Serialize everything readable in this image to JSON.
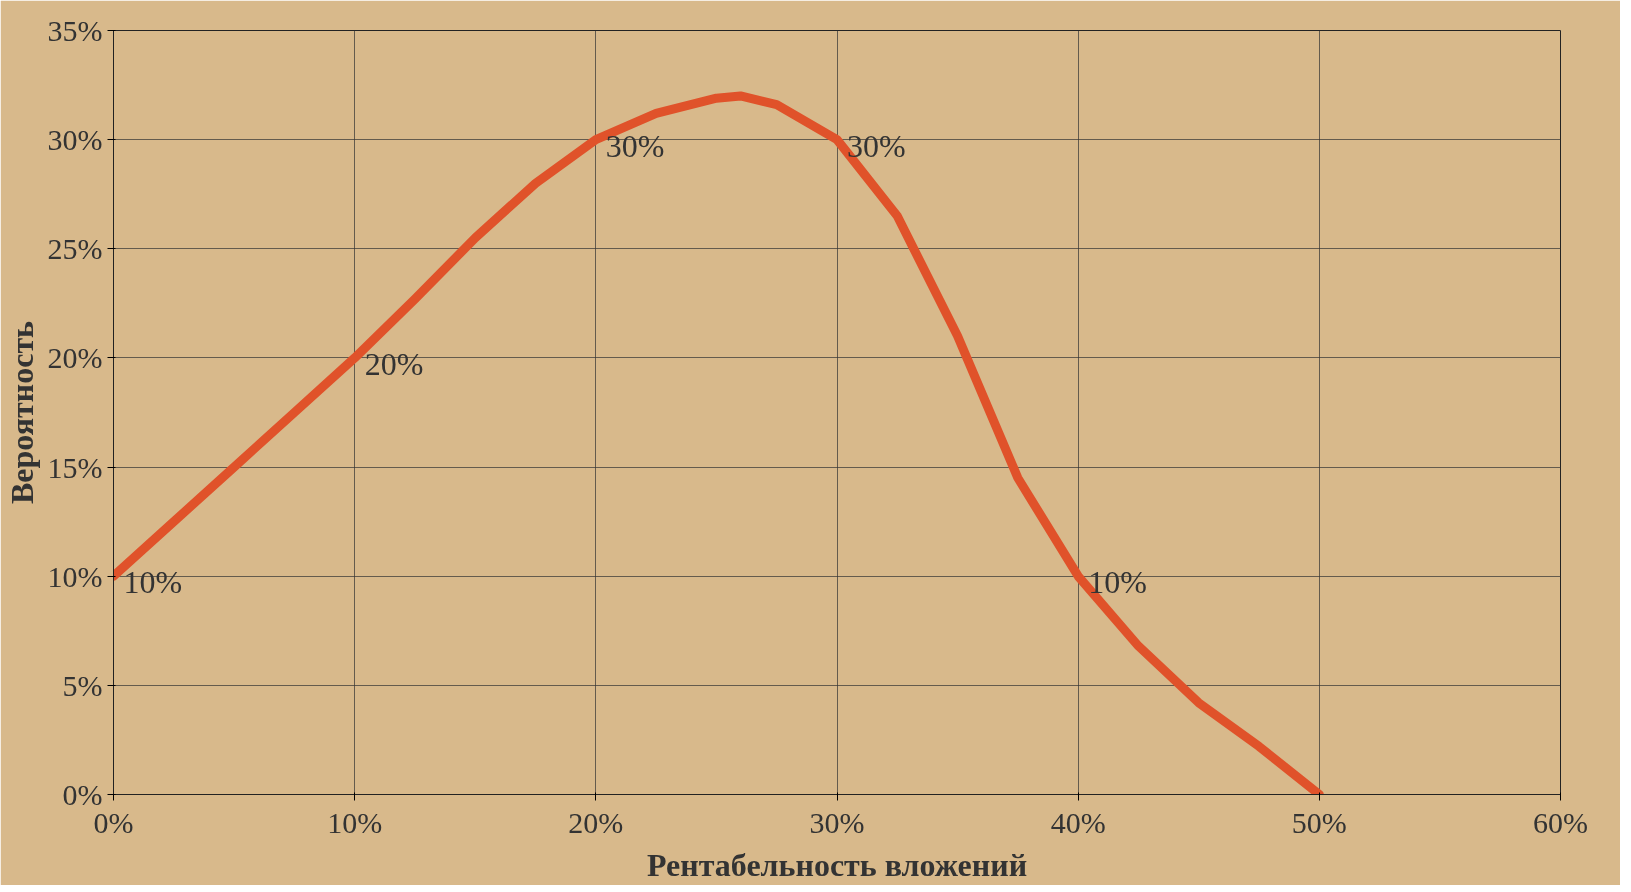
{
  "chart_data": {
    "type": "line",
    "xlabel": "Рентабельность вложений",
    "ylabel": "Вероятность",
    "x": [
      0,
      2.5,
      5,
      7.5,
      10,
      12.5,
      15,
      17.5,
      20,
      22.5,
      25,
      26,
      27.5,
      30,
      32.5,
      35,
      37.5,
      40,
      42.5,
      45,
      47.5,
      50
    ],
    "series": [
      {
        "color": "#e0522a",
        "values": [
          10,
          12.5,
          15,
          17.5,
          20,
          22.7,
          25.5,
          28,
          30,
          31.2,
          31.9,
          32,
          31.6,
          30,
          26.5,
          21,
          14.5,
          10,
          6.8,
          4.2,
          2.2,
          0
        ],
        "value_labels": [
          "10%",
          null,
          null,
          null,
          "20%",
          null,
          null,
          null,
          "30%",
          null,
          null,
          null,
          null,
          "30%",
          null,
          null,
          null,
          "10%",
          null,
          null,
          null,
          null
        ]
      }
    ],
    "xlim": [
      0,
      60
    ],
    "ylim": [
      0,
      35
    ],
    "xticks": [
      {
        "value": 0,
        "label": "0%"
      },
      {
        "value": 10,
        "label": "10%"
      },
      {
        "value": 20,
        "label": "20%"
      },
      {
        "value": 30,
        "label": "30%"
      },
      {
        "value": 40,
        "label": "40%"
      },
      {
        "value": 50,
        "label": "50%"
      },
      {
        "value": 60,
        "label": "60%"
      }
    ],
    "yticks": [
      {
        "value": 0,
        "label": "0%"
      },
      {
        "value": 5,
        "label": "5%"
      },
      {
        "value": 10,
        "label": "10%"
      },
      {
        "value": 15,
        "label": "15%"
      },
      {
        "value": 20,
        "label": "20%"
      },
      {
        "value": 25,
        "label": "25%"
      },
      {
        "value": 30,
        "label": "30%"
      },
      {
        "value": 35,
        "label": "35%"
      }
    ],
    "grid": true,
    "marker": "none",
    "line_style": "solid"
  }
}
